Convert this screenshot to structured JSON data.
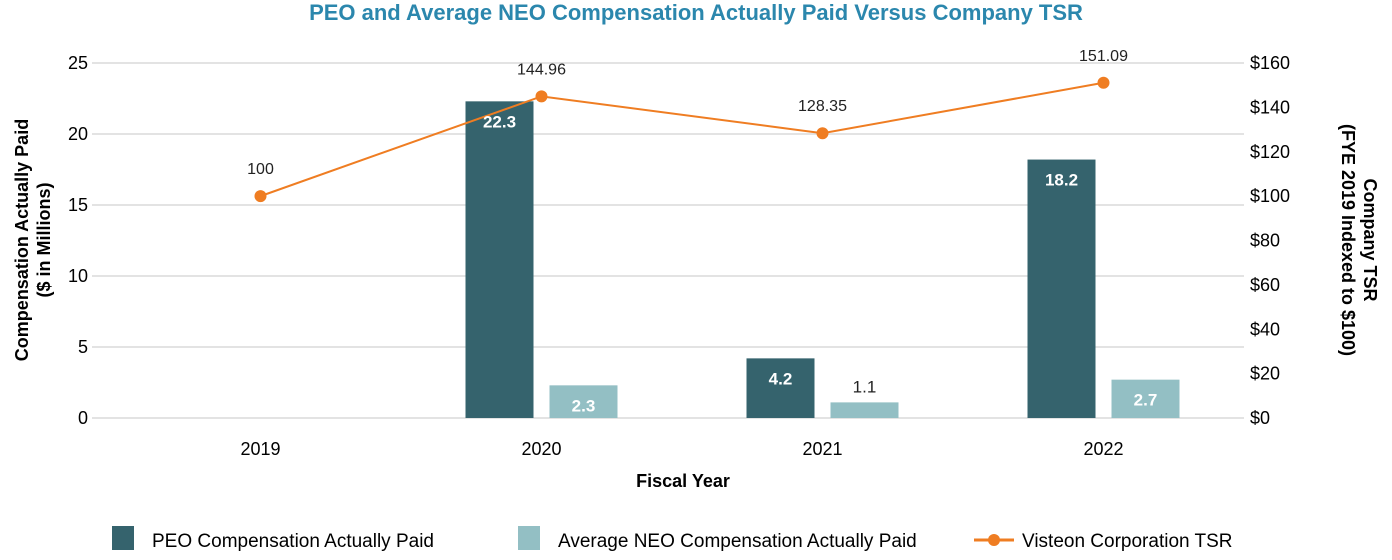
{
  "chart_data": {
    "type": "bar",
    "title": "PEO and Average NEO Compensation Actually Paid Versus Company TSR",
    "xlabel": "Fiscal Year",
    "ylabel_lines": [
      "Compensation Actually Paid",
      "($ in Millions)"
    ],
    "y2label_lines": [
      "Company TSR",
      "(FYE 2019 Indexed to $100)"
    ],
    "categories": [
      "2019",
      "2020",
      "2021",
      "2022"
    ],
    "ylim": [
      0,
      25
    ],
    "yticks": [
      "0",
      "5",
      "10",
      "15",
      "20",
      "25"
    ],
    "y2lim": [
      0,
      160
    ],
    "y2ticks": [
      "$0",
      "$20",
      "$40",
      "$60",
      "$80",
      "$100",
      "$120",
      "$140",
      "$160"
    ],
    "grid": true,
    "legend_position": "bottom",
    "series": [
      {
        "name": "PEO Compensation Actually Paid",
        "type": "bar",
        "axis": "left",
        "color": "#35636d",
        "values": [
          null,
          22.3,
          4.2,
          18.2
        ],
        "labels": [
          "",
          "22.3",
          "4.2",
          "18.2"
        ]
      },
      {
        "name": "Average NEO Compensation Actually Paid",
        "type": "bar",
        "axis": "left",
        "color": "#93bfc4",
        "values": [
          null,
          2.3,
          1.1,
          2.7
        ],
        "labels": [
          "",
          "2.3",
          "1.1",
          "2.7"
        ]
      },
      {
        "name": "Visteon Corporation TSR",
        "type": "line",
        "axis": "right",
        "color": "#ef7d22",
        "values": [
          100,
          144.96,
          128.35,
          151.09
        ],
        "labels": [
          "100",
          "144.96",
          "128.35",
          "151.09"
        ]
      }
    ],
    "title_color": "#2b87ad"
  }
}
